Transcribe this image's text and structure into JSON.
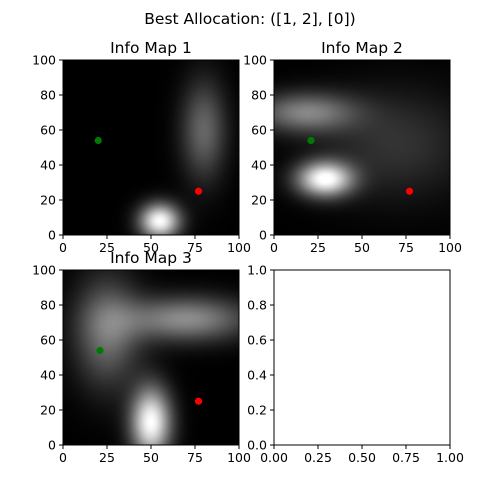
{
  "figure": {
    "suptitle": "Best Allocation: ([1, 2], [0])"
  },
  "colors": {
    "green_point": "#007a00",
    "red_point": "#ff0000",
    "background": "#ffffff",
    "axes": "#000000"
  },
  "chart_data": [
    {
      "type": "heatmap",
      "title": "Info Map 1",
      "colormap": "gray",
      "xlim": [
        0,
        100
      ],
      "ylim": [
        0,
        100
      ],
      "xticks": [
        0,
        25,
        50,
        75,
        100
      ],
      "yticks": [
        0,
        20,
        40,
        60,
        80,
        100
      ],
      "points": [
        {
          "x": 20,
          "y": 54,
          "color": "green"
        },
        {
          "x": 77,
          "y": 25,
          "color": "red"
        }
      ],
      "hotspots": [
        {
          "x": 55,
          "y": 8,
          "sx": 8,
          "sy": 7,
          "intensity": 1.0
        },
        {
          "x": 80,
          "y": 60,
          "sx": 9,
          "sy": 20,
          "intensity": 0.4
        }
      ]
    },
    {
      "type": "heatmap",
      "title": "Info Map 2",
      "colormap": "gray",
      "xlim": [
        0,
        100
      ],
      "ylim": [
        0,
        100
      ],
      "xticks": [
        0,
        25,
        50,
        75,
        100
      ],
      "yticks": [
        0,
        20,
        40,
        60,
        80,
        100
      ],
      "points": [
        {
          "x": 21,
          "y": 54,
          "color": "green"
        },
        {
          "x": 77,
          "y": 25,
          "color": "red"
        }
      ],
      "hotspots": [
        {
          "x": 29,
          "y": 32,
          "sx": 11,
          "sy": 7,
          "intensity": 1.0
        },
        {
          "x": 18,
          "y": 70,
          "sx": 20,
          "sy": 8,
          "intensity": 0.5
        },
        {
          "x": 70,
          "y": 52,
          "sx": 30,
          "sy": 22,
          "intensity": 0.2
        }
      ]
    },
    {
      "type": "heatmap",
      "title": "Info Map 3",
      "colormap": "gray",
      "xlim": [
        0,
        100
      ],
      "ylim": [
        0,
        100
      ],
      "xticks": [
        0,
        25,
        50,
        75,
        100
      ],
      "yticks": [
        0,
        20,
        40,
        60,
        80,
        100
      ],
      "points": [
        {
          "x": 21,
          "y": 54,
          "color": "green"
        },
        {
          "x": 77,
          "y": 25,
          "color": "red"
        }
      ],
      "hotspots": [
        {
          "x": 50,
          "y": 13,
          "sx": 8,
          "sy": 14,
          "intensity": 1.0
        },
        {
          "x": 70,
          "y": 72,
          "sx": 25,
          "sy": 9,
          "intensity": 0.55
        },
        {
          "x": 25,
          "y": 65,
          "sx": 13,
          "sy": 22,
          "intensity": 0.45
        }
      ]
    },
    {
      "type": "scatter",
      "title": "",
      "empty": true,
      "xlim": [
        0,
        1
      ],
      "ylim": [
        0,
        1
      ],
      "xticks": [
        "0.00",
        "0.25",
        "0.50",
        "0.75",
        "1.00"
      ],
      "yticks": [
        "0.0",
        "0.2",
        "0.4",
        "0.6",
        "0.8",
        "1.0"
      ]
    }
  ]
}
